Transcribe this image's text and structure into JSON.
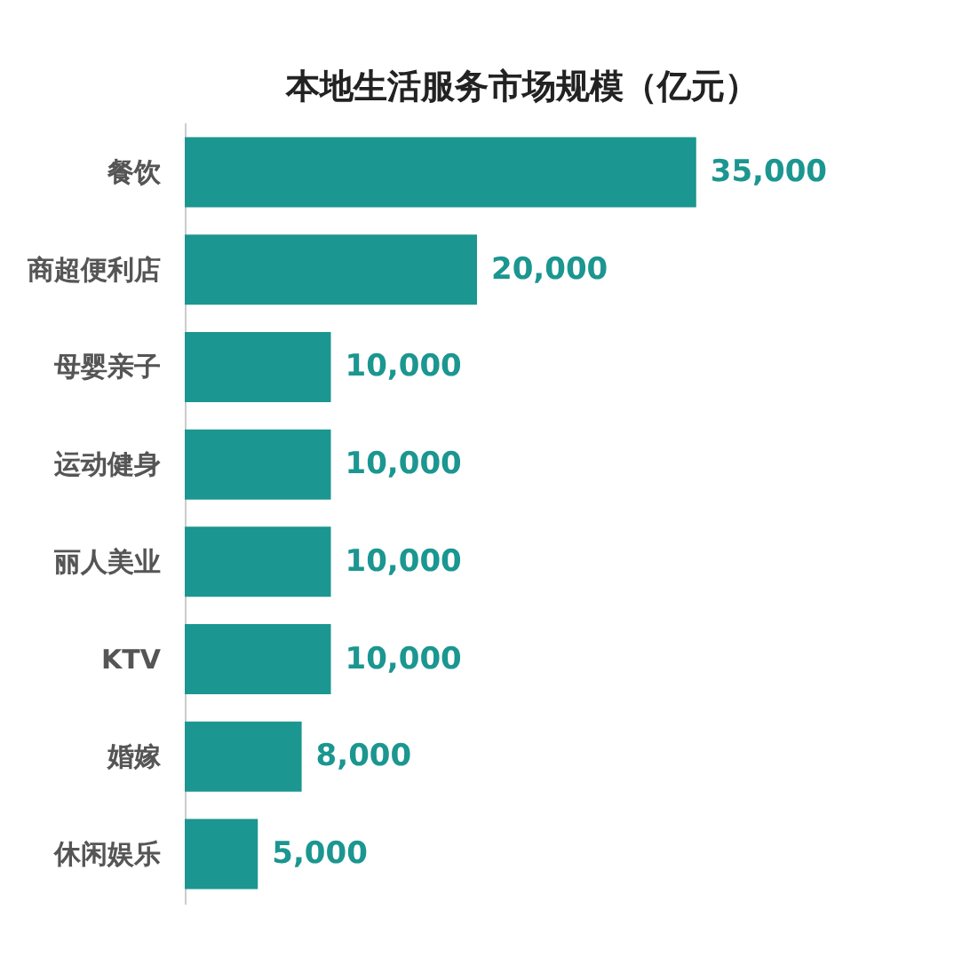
{
  "chart_data": {
    "type": "bar",
    "orientation": "horizontal",
    "title": "本地生活服务市场规模（亿元）",
    "categories": [
      "餐饮",
      "商超便利店",
      "母婴亲子",
      "运动健身",
      "丽人美业",
      "KTV",
      "婚嫁",
      "休闲娱乐"
    ],
    "values": [
      35000,
      20000,
      10000,
      10000,
      10000,
      10000,
      8000,
      5000
    ],
    "value_labels": [
      "35,000",
      "20,000",
      "10,000",
      "10,000",
      "10,000",
      "10,000",
      "8,000",
      "5,000"
    ],
    "color": "#1b9690",
    "tick_labels": "y"
  }
}
